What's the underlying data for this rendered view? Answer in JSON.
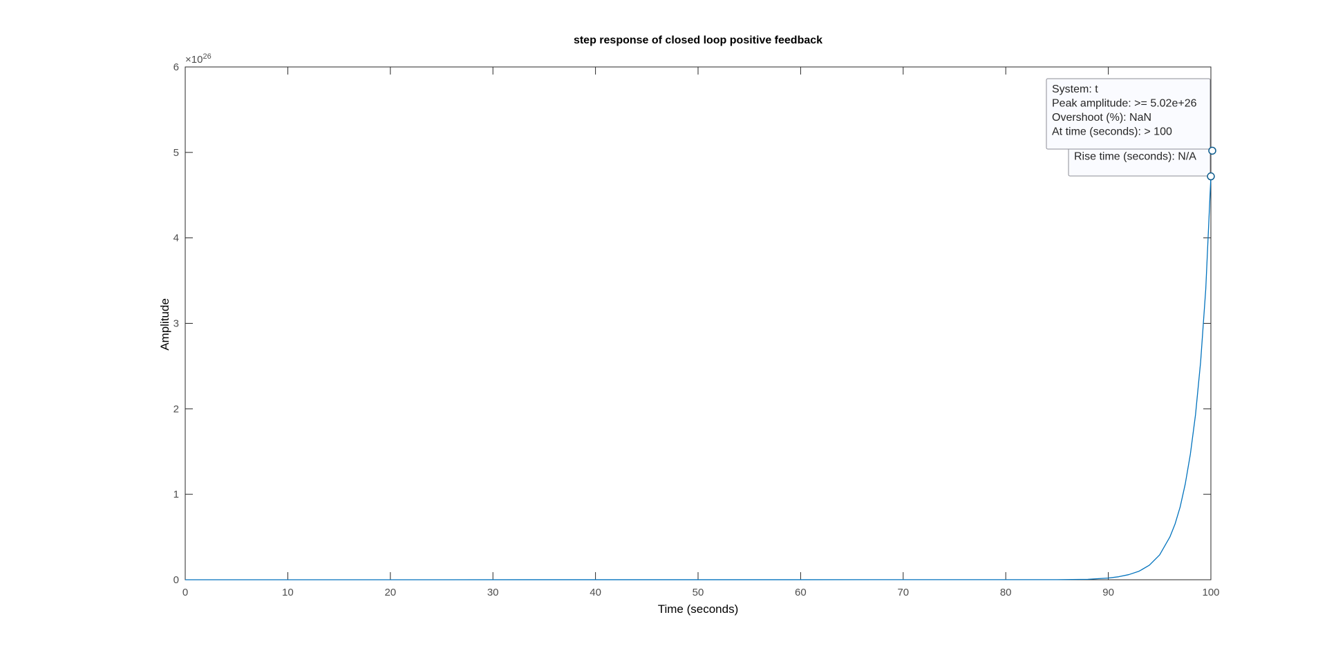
{
  "chart_data": {
    "type": "line",
    "title": "step response of closed loop positive feedback",
    "xlabel": "Time (seconds)",
    "ylabel": "Amplitude",
    "xlim": [
      0,
      100
    ],
    "ylim": [
      0,
      6
    ],
    "y_exponent": {
      "base": "×10",
      "power": "26"
    },
    "x_ticks": [
      0,
      10,
      20,
      30,
      40,
      50,
      60,
      70,
      80,
      90,
      100
    ],
    "y_ticks": [
      0,
      1,
      2,
      3,
      4,
      5,
      6
    ],
    "grid": false,
    "series_color": "#0072BD",
    "series": [
      {
        "x": [
          0,
          85,
          88,
          90,
          91,
          92,
          93,
          94,
          95,
          96,
          96.5,
          97,
          97.5,
          98,
          98.5,
          99,
          99.5,
          100
        ],
        "y": [
          0,
          0.001,
          0.005,
          0.02,
          0.035,
          0.06,
          0.1,
          0.17,
          0.29,
          0.5,
          0.65,
          0.85,
          1.12,
          1.47,
          1.93,
          2.55,
          3.4,
          4.72
        ]
      }
    ],
    "markers": [
      {
        "x": 100,
        "y": 5.02
      },
      {
        "x": 100,
        "y": 4.72
      }
    ],
    "annotations": [
      {
        "lines": [
          "System: t",
          "Rise time (seconds): N/A"
        ]
      },
      {
        "lines": [
          "System: t",
          "Peak amplitude: >= 5.02e+26",
          "Overshoot (%): NaN",
          "At time (seconds): > 100"
        ]
      }
    ]
  }
}
